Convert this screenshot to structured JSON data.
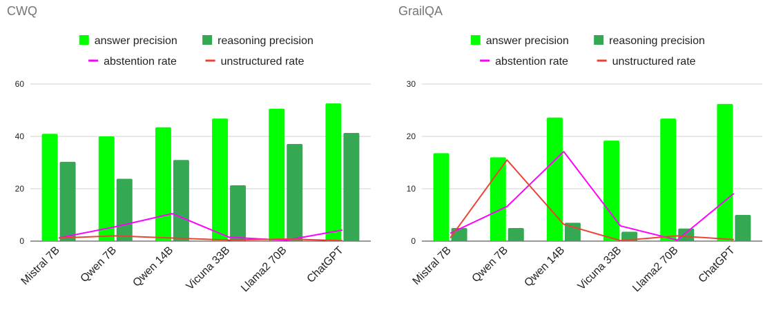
{
  "chart_data": [
    {
      "type": "bar",
      "title": "CWQ",
      "categories": [
        "Mistral 7B",
        "Qwen 7B",
        "Qwen 14B",
        "Vicuna  33B",
        "Llama2 70B",
        "ChatGPT"
      ],
      "series": [
        {
          "name": "answer precision",
          "kind": "bar",
          "color": "#00ff00",
          "values": [
            41,
            40,
            43.5,
            46.8,
            50.6,
            52.6
          ]
        },
        {
          "name": "reasoning precision",
          "kind": "bar",
          "color": "#34a853",
          "values": [
            30.3,
            23.8,
            31,
            21.3,
            37.1,
            41.3
          ]
        },
        {
          "name": "abstention rate",
          "kind": "line",
          "color": "#ff00ff",
          "values": [
            1.2,
            5.5,
            10.5,
            1.5,
            0.3,
            4.2
          ]
        },
        {
          "name": "unstructured rate",
          "kind": "line",
          "color": "#ea4335",
          "values": [
            1.2,
            2,
            1.2,
            0.4,
            0.8,
            0.2
          ]
        }
      ],
      "ylim": [
        0,
        60
      ],
      "yticks": [
        0,
        20,
        40,
        60
      ],
      "grid": true,
      "legend": "top"
    },
    {
      "type": "bar",
      "title": "GrailQA",
      "categories": [
        "Mistral 7B",
        "Qwen 7B",
        "Qwen 14B",
        "Vicuna  33B",
        "Llama2 70B",
        "ChatGPT"
      ],
      "series": [
        {
          "name": "answer precision",
          "kind": "bar",
          "color": "#00ff00",
          "values": [
            16.8,
            16,
            23.6,
            19.2,
            23.4,
            26.2
          ]
        },
        {
          "name": "reasoning precision",
          "kind": "bar",
          "color": "#34a853",
          "values": [
            2.5,
            2.5,
            3.5,
            1.8,
            2.4,
            5
          ]
        },
        {
          "name": "abstention rate",
          "kind": "line",
          "color": "#ff00ff",
          "values": [
            1.5,
            6.6,
            17.1,
            2.9,
            0.2,
            9.1
          ]
        },
        {
          "name": "unstructured rate",
          "kind": "line",
          "color": "#ea4335",
          "values": [
            0.6,
            15.5,
            3.2,
            0.1,
            1,
            0.3
          ]
        }
      ],
      "ylim": [
        0,
        30
      ],
      "yticks": [
        0,
        10,
        20,
        30
      ],
      "grid": true,
      "legend": "top"
    }
  ]
}
